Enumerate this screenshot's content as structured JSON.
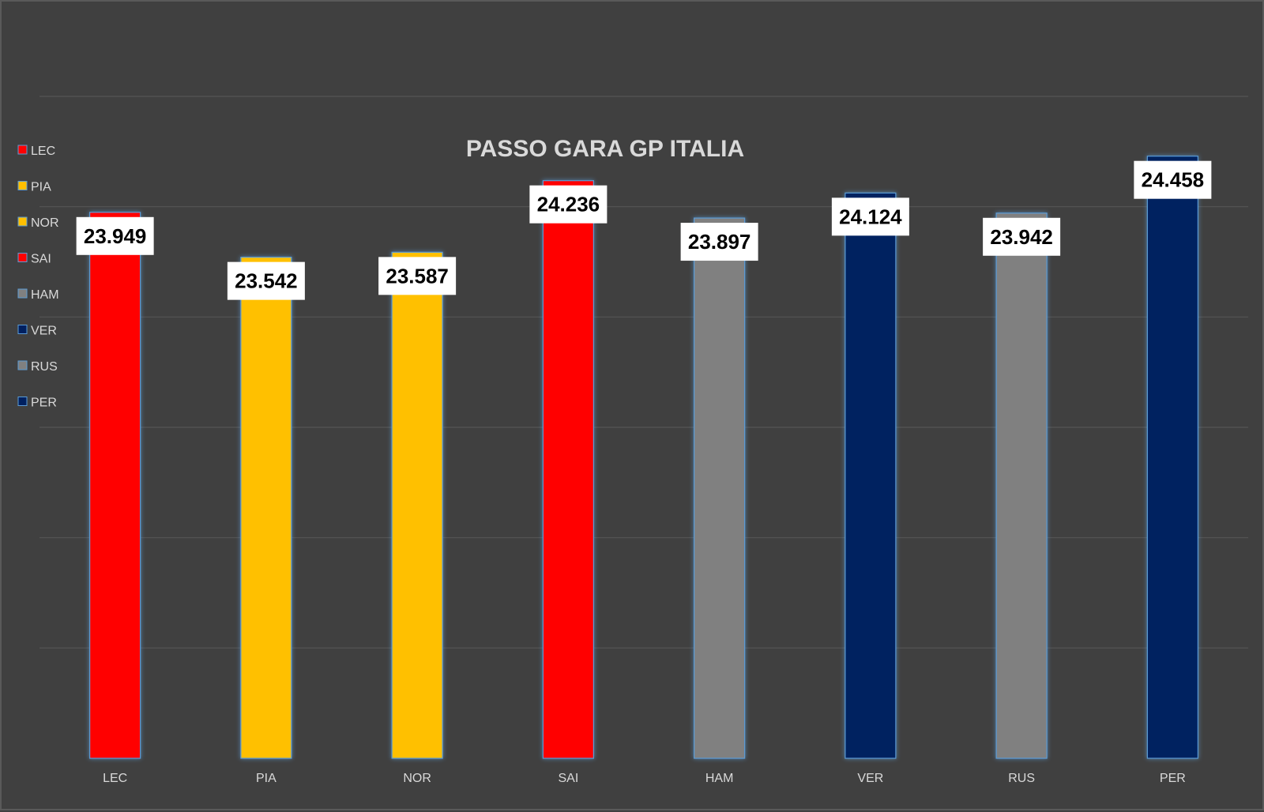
{
  "chart_data": {
    "type": "bar",
    "title": "PASSO GARA GP ITALIA",
    "xlabel": "",
    "ylabel": "",
    "categories": [
      "LEC",
      "PIA",
      "NOR",
      "SAI",
      "HAM",
      "VER",
      "RUS",
      "PER"
    ],
    "values": [
      23.949,
      23.542,
      23.587,
      24.236,
      23.897,
      24.124,
      23.942,
      24.458
    ],
    "data_labels": [
      "23.949",
      "23.542",
      "23.587",
      "24.236",
      "23.897",
      "24.124",
      "23.942",
      "24.458"
    ],
    "colors": [
      "#ff0000",
      "#ffc000",
      "#ffc000",
      "#ff0000",
      "#808080",
      "#002060",
      "#808080",
      "#002060"
    ],
    "ylim": [
      19,
      25
    ],
    "grid": true,
    "legend_position": "left",
    "legend": [
      {
        "label": "LEC",
        "color": "#ff0000"
      },
      {
        "label": "PIA",
        "color": "#ffc000"
      },
      {
        "label": "NOR",
        "color": "#ffc000"
      },
      {
        "label": "SAI",
        "color": "#ff0000"
      },
      {
        "label": "HAM",
        "color": "#808080"
      },
      {
        "label": "VER",
        "color": "#002060"
      },
      {
        "label": "RUS",
        "color": "#808080"
      },
      {
        "label": "PER",
        "color": "#002060"
      }
    ],
    "background_color": "#404040",
    "bar_outline_color": "#5b9bd5"
  }
}
